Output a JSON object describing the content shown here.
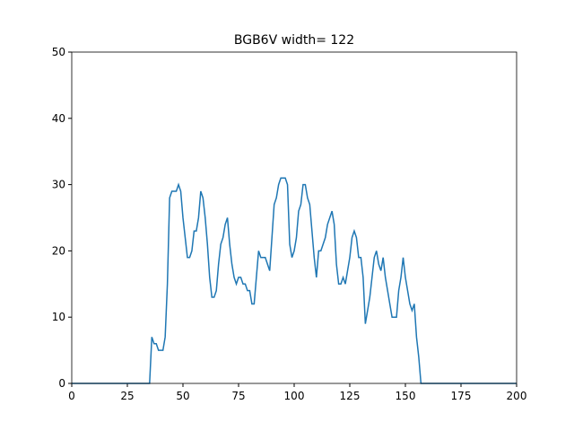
{
  "chart_data": {
    "type": "line",
    "title": "BGB6V width= 122",
    "x": [
      0,
      35,
      36,
      37,
      38,
      39,
      40,
      41,
      42,
      43,
      44,
      45,
      46,
      47,
      48,
      49,
      50,
      51,
      52,
      53,
      54,
      55,
      56,
      57,
      58,
      59,
      60,
      61,
      62,
      63,
      64,
      65,
      66,
      67,
      68,
      69,
      70,
      71,
      72,
      73,
      74,
      75,
      76,
      77,
      78,
      79,
      80,
      81,
      82,
      83,
      84,
      85,
      86,
      87,
      88,
      89,
      90,
      91,
      92,
      93,
      94,
      95,
      96,
      97,
      98,
      99,
      100,
      101,
      102,
      103,
      104,
      105,
      106,
      107,
      108,
      109,
      110,
      111,
      112,
      113,
      114,
      115,
      116,
      117,
      118,
      119,
      120,
      121,
      122,
      123,
      124,
      125,
      126,
      127,
      128,
      129,
      130,
      131,
      132,
      133,
      134,
      135,
      136,
      137,
      138,
      139,
      140,
      141,
      142,
      143,
      144,
      145,
      146,
      147,
      148,
      149,
      150,
      151,
      152,
      153,
      154,
      155,
      156,
      157,
      200
    ],
    "series": [
      {
        "color": "#1f77b4",
        "values": [
          0,
          0,
          7,
          6,
          6,
          5,
          5,
          5,
          7,
          15,
          28,
          29,
          29,
          29,
          30,
          29,
          25,
          22,
          19,
          19,
          20,
          23,
          23,
          25,
          29,
          28,
          25,
          21,
          16,
          13,
          13,
          14,
          18,
          21,
          22,
          24,
          25,
          21,
          18,
          16,
          15,
          16,
          16,
          15,
          15,
          14,
          14,
          12,
          12,
          16,
          20,
          19,
          19,
          19,
          18,
          17,
          22,
          27,
          28,
          30,
          31,
          31,
          31,
          30,
          21,
          19,
          20,
          22,
          26,
          27,
          30,
          30,
          28,
          27,
          23,
          19,
          16,
          20,
          20,
          21,
          22,
          24,
          25,
          26,
          24,
          18,
          15,
          15,
          16,
          15,
          17,
          19,
          22,
          23,
          22,
          19,
          19,
          16,
          9,
          11,
          13,
          16,
          19,
          20,
          18,
          17,
          19,
          16,
          14,
          12,
          10,
          10,
          10,
          14,
          16,
          19,
          16,
          14,
          12,
          11,
          12,
          7,
          4,
          0,
          0
        ]
      }
    ],
    "xlim": [
      0,
      200
    ],
    "ylim": [
      0,
      50
    ],
    "xticks": [
      0,
      25,
      50,
      75,
      100,
      125,
      150,
      175,
      200
    ],
    "yticks": [
      0,
      10,
      20,
      30,
      40,
      50
    ]
  }
}
